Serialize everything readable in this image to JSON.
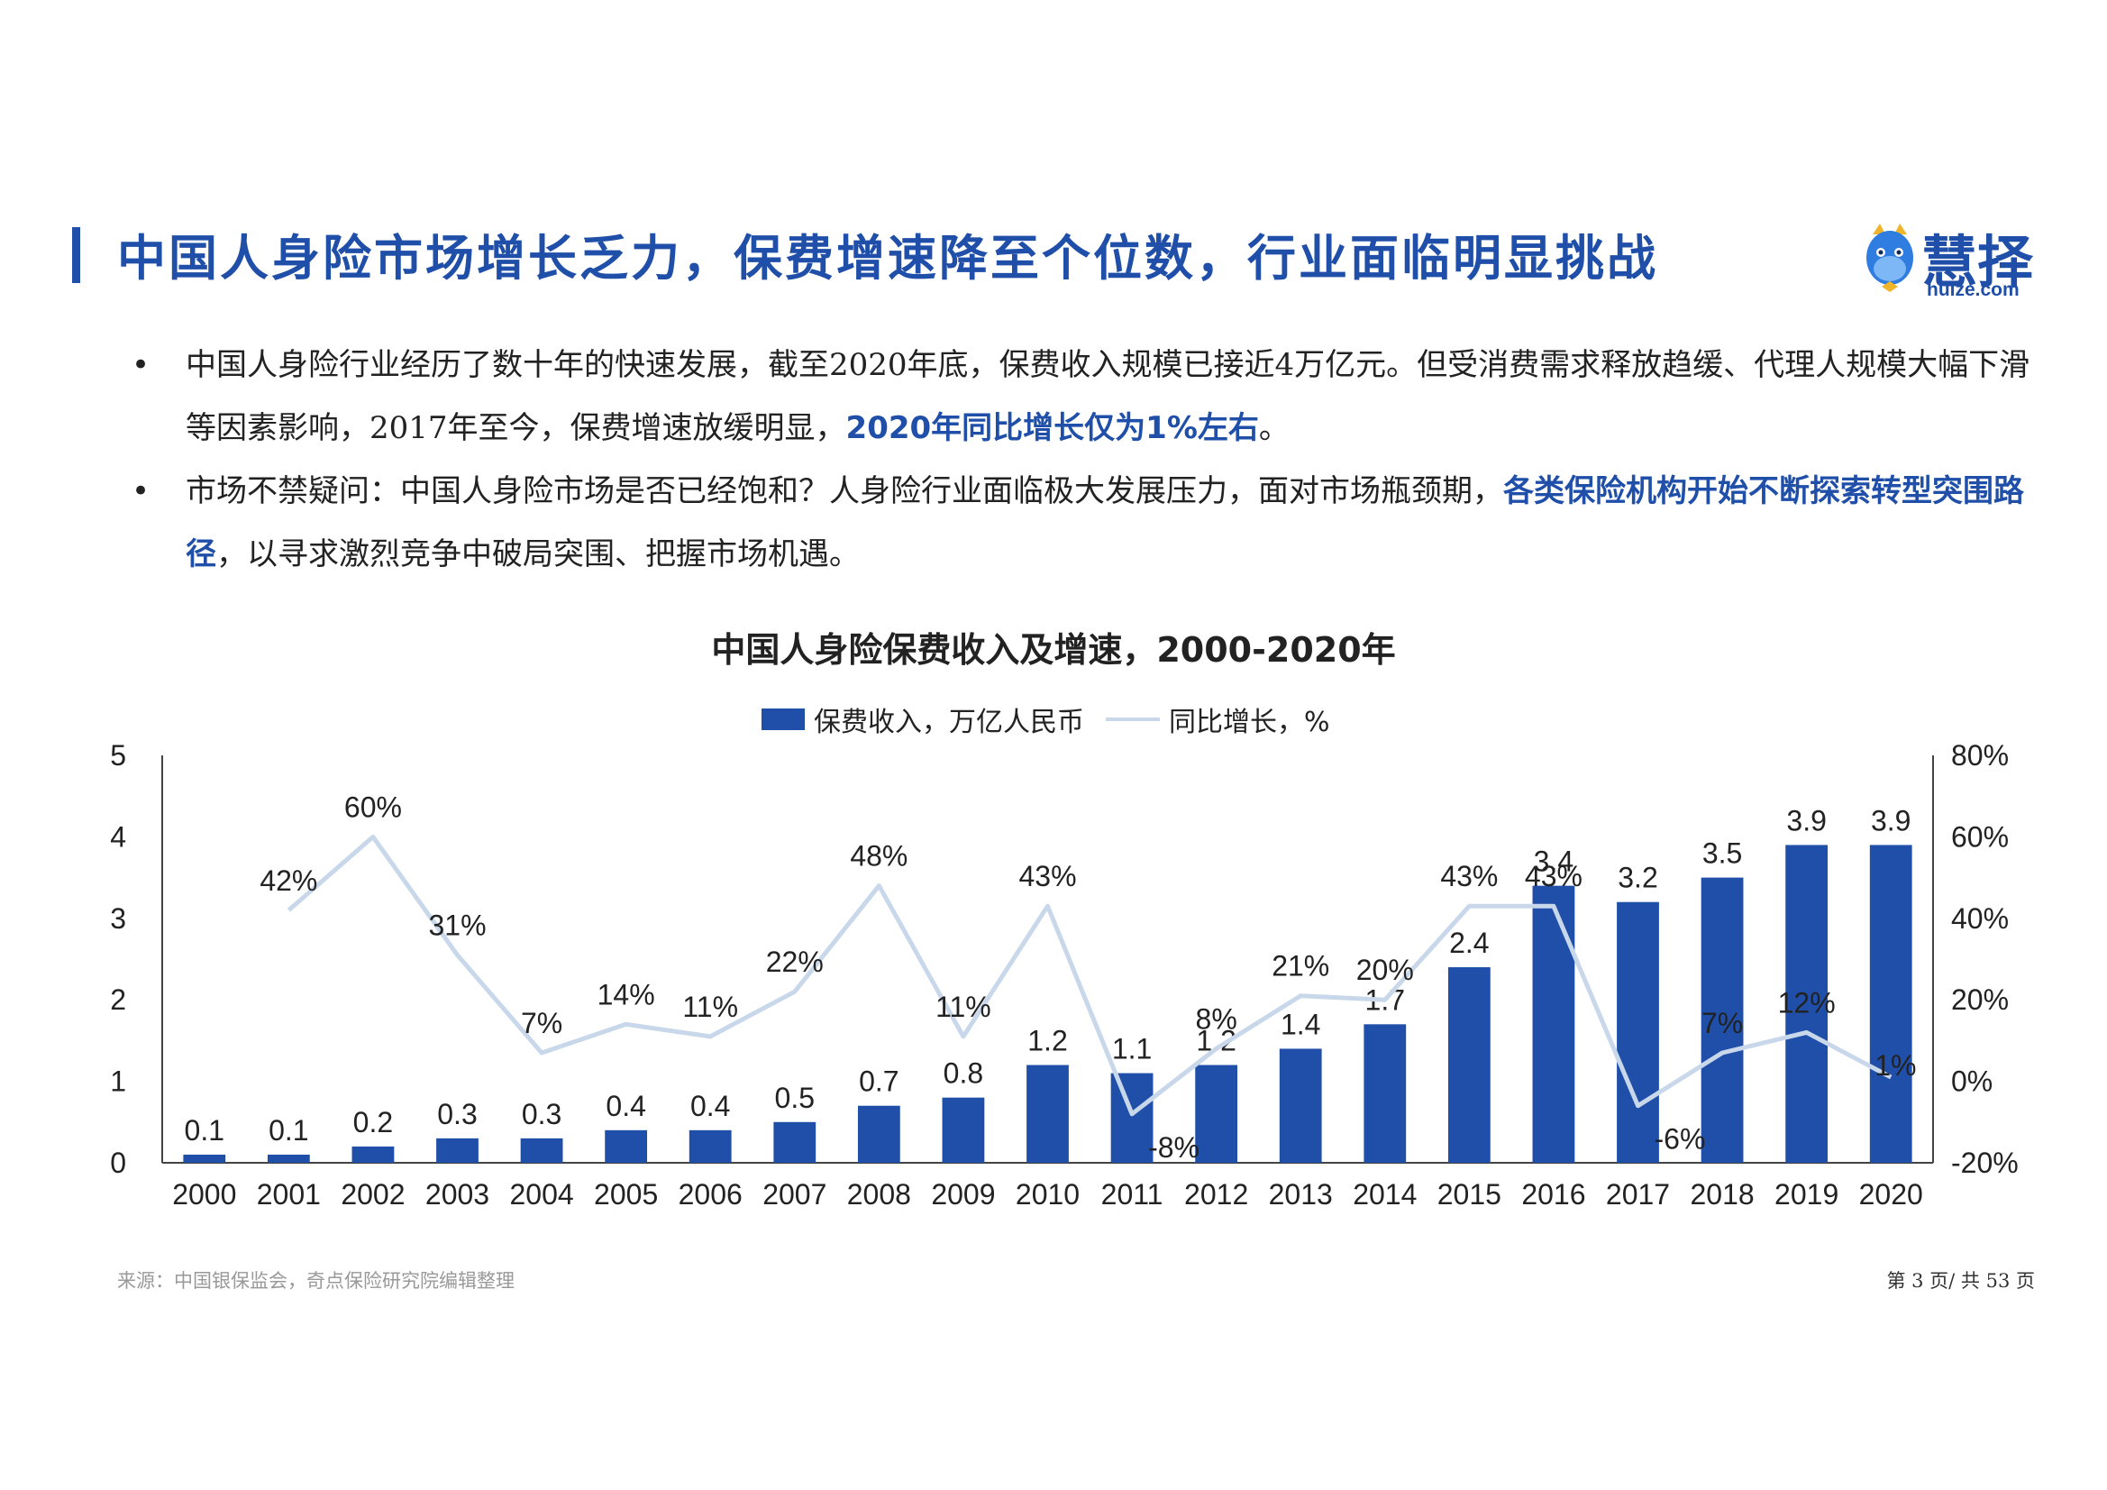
{
  "header": {
    "title": "中国人身险市场增长乏力，保费增速降至个位数，行业面临明显挑战",
    "logo_name": "慧择",
    "logo_domain": "huize.com",
    "logo_icon": "horse-mascot-icon"
  },
  "bullets": [
    {
      "marker": "•",
      "text_main": "中国人身险行业经历了数十年的快速发展，截至2020年底，保费收入规模已接近4万亿元。但受消费需求释放趋缓、代理人规模大幅下滑等因素影响，2017年至今，保费增速放缓明显，",
      "highlight": "2020年同比增长仅为1%左右",
      "text_tail": "。"
    },
    {
      "marker": "•",
      "text_main": "市场不禁疑问：中国人身险市场是否已经饱和？人身险行业面临极大发展压力，面对市场瓶颈期，",
      "highlight": "各类保险机构开始不断探索转型突围路径",
      "text_tail": "，以寻求激烈竞争中破局突围、把握市场机遇。"
    }
  ],
  "colors": {
    "accent": "#1f4fa8",
    "line": "#c8d8ea"
  },
  "chart_data": {
    "type": "bar",
    "title": "中国人身险保费收入及增速，2000-2020年",
    "categories": [
      "2000",
      "2001",
      "2002",
      "2003",
      "2004",
      "2005",
      "2006",
      "2007",
      "2008",
      "2009",
      "2010",
      "2011",
      "2012",
      "2013",
      "2014",
      "2015",
      "2016",
      "2017",
      "2018",
      "2019",
      "2020"
    ],
    "series": [
      {
        "name": "保费收入，万亿人民币",
        "type": "bar",
        "axis": "left",
        "values": [
          0.1,
          0.1,
          0.2,
          0.3,
          0.3,
          0.4,
          0.4,
          0.5,
          0.7,
          0.8,
          1.2,
          1.1,
          1.2,
          1.4,
          1.7,
          2.4,
          3.4,
          3.2,
          3.5,
          3.9,
          3.9
        ],
        "labels": [
          "0.1",
          "0.1",
          "0.2",
          "0.3",
          "0.3",
          "0.4",
          "0.4",
          "0.5",
          "0.7",
          "0.8",
          "1.2",
          "1.1",
          "1.2",
          "1.4",
          "1.7",
          "2.4",
          "3.4",
          "3.2",
          "3.5",
          "3.9",
          "3.9"
        ]
      },
      {
        "name": "同比增长，%",
        "type": "line",
        "axis": "right",
        "values": [
          null,
          42,
          60,
          31,
          7,
          14,
          11,
          22,
          48,
          11,
          43,
          -8,
          8,
          21,
          20,
          43,
          43,
          -6,
          7,
          12,
          1
        ],
        "labels": [
          "",
          "42%",
          "60%",
          "31%",
          "7%",
          "14%",
          "11%",
          "22%",
          "48%",
          "11%",
          "43%",
          "-8%",
          "8%",
          "21%",
          "20%",
          "43%",
          "43%",
          "-6%",
          "7%",
          "12%",
          "1%"
        ]
      }
    ],
    "y_left": {
      "ylim": [
        0,
        5
      ],
      "ticks": [
        "0",
        "1",
        "2",
        "3",
        "4",
        "5"
      ]
    },
    "y_right": {
      "ylim": [
        -20,
        80
      ],
      "ticks": [
        "-20%",
        "0%",
        "20%",
        "40%",
        "60%",
        "80%"
      ]
    },
    "legend_position": "top-center",
    "grid": false
  },
  "footer": {
    "source": "来源：中国银保监会，奇点保险研究院编辑整理",
    "page": "第 3 页/ 共 53 页"
  }
}
